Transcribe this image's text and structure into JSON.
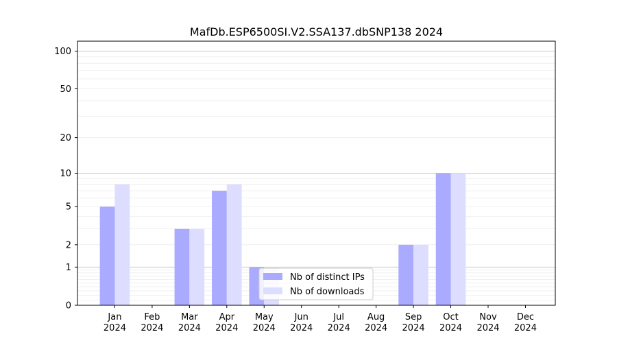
{
  "chart_data": {
    "type": "bar",
    "title": "MafDb.ESP6500SI.V2.SSA137.dbSNP138 2024",
    "xlabel": "",
    "ylabel": "",
    "categories": [
      [
        "Jan",
        "2024"
      ],
      [
        "Feb",
        "2024"
      ],
      [
        "Mar",
        "2024"
      ],
      [
        "Apr",
        "2024"
      ],
      [
        "May",
        "2024"
      ],
      [
        "Jun",
        "2024"
      ],
      [
        "Jul",
        "2024"
      ],
      [
        "Aug",
        "2024"
      ],
      [
        "Sep",
        "2024"
      ],
      [
        "Oct",
        "2024"
      ],
      [
        "Nov",
        "2024"
      ],
      [
        "Dec",
        "2024"
      ]
    ],
    "series": [
      {
        "name": "Nb of distinct IPs",
        "color": "#aaaaff",
        "values": [
          5,
          0,
          3,
          7,
          1,
          0,
          0,
          0,
          2,
          10,
          0,
          0
        ]
      },
      {
        "name": "Nb of downloads",
        "color": "#ddddff",
        "values": [
          8,
          0,
          3,
          8,
          1,
          0,
          0,
          0,
          2,
          10,
          0,
          0
        ]
      }
    ],
    "yscale": "symlog",
    "ylim": [
      0,
      120
    ],
    "yticks": [
      0,
      1,
      2,
      5,
      10,
      20,
      50,
      100
    ],
    "ytick_labels": [
      "0",
      "1",
      "2",
      "5",
      "10",
      "20",
      "50",
      "100"
    ],
    "grid": "horizontal",
    "legend_position": "lower-center"
  }
}
